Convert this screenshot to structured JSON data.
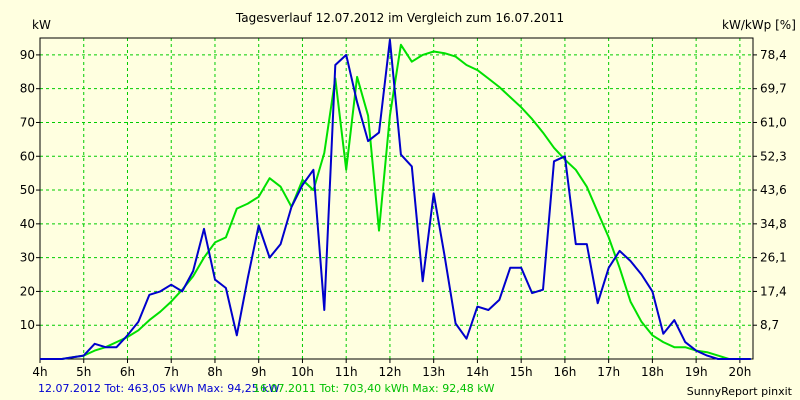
{
  "header": {
    "title": "Tagesverlauf 12.07.2012 im Vergleich zum 16.07.2011",
    "unit_left": "kW",
    "unit_right": "kW/kWp [%]"
  },
  "footer": {
    "series_a": "12.07.2012 Tot: 463,05 kWh Max: 94,25 kW",
    "series_b": "16.07.2011 Tot: 703,40 kWh Max: 92,48 kW",
    "brand": "SunnyReport pinxit"
  },
  "colors": {
    "background": "#ffffe0",
    "grid": "#00cc00",
    "series_a": "#0000cc",
    "series_b": "#00e000"
  },
  "chart_data": {
    "type": "line",
    "title": "Tagesverlauf 12.07.2012 im Vergleich zum 16.07.2011",
    "ylabel": "kW",
    "y2label": "kW/kWp [%]",
    "xlim": [
      4,
      20.3
    ],
    "ylim": [
      0,
      95
    ],
    "x_ticks": [
      {
        "v": 4,
        "label": "4h"
      },
      {
        "v": 5,
        "label": "5h"
      },
      {
        "v": 6,
        "label": "6h"
      },
      {
        "v": 7,
        "label": "7h"
      },
      {
        "v": 8,
        "label": "8h"
      },
      {
        "v": 9,
        "label": "9h"
      },
      {
        "v": 10,
        "label": "10h"
      },
      {
        "v": 11,
        "label": "11h"
      },
      {
        "v": 12,
        "label": "12h"
      },
      {
        "v": 13,
        "label": "13h"
      },
      {
        "v": 14,
        "label": "14h"
      },
      {
        "v": 15,
        "label": "15h"
      },
      {
        "v": 16,
        "label": "16h"
      },
      {
        "v": 17,
        "label": "17h"
      },
      {
        "v": 18,
        "label": "18h"
      },
      {
        "v": 19,
        "label": "19h"
      },
      {
        "v": 20,
        "label": "20h"
      }
    ],
    "y_ticks": [
      {
        "v": 10,
        "label": "10"
      },
      {
        "v": 20,
        "label": "20"
      },
      {
        "v": 30,
        "label": "30"
      },
      {
        "v": 40,
        "label": "40"
      },
      {
        "v": 50,
        "label": "50"
      },
      {
        "v": 60,
        "label": "60"
      },
      {
        "v": 70,
        "label": "70"
      },
      {
        "v": 80,
        "label": "80"
      },
      {
        "v": 90,
        "label": "90"
      }
    ],
    "y2_ticks": [
      {
        "v": 10,
        "label": "8,7"
      },
      {
        "v": 20,
        "label": "17,4"
      },
      {
        "v": 30,
        "label": "26,1"
      },
      {
        "v": 40,
        "label": "34,8"
      },
      {
        "v": 50,
        "label": "43,6"
      },
      {
        "v": 60,
        "label": "52,3"
      },
      {
        "v": 70,
        "label": "61,0"
      },
      {
        "v": 80,
        "label": "69,7"
      },
      {
        "v": 90,
        "label": "78,4"
      }
    ],
    "grid": true,
    "series": [
      {
        "name": "12.07.2012",
        "color": "#0000cc",
        "x": [
          4.0,
          4.25,
          4.5,
          4.75,
          5.0,
          5.25,
          5.5,
          5.75,
          6.0,
          6.25,
          6.5,
          6.75,
          7.0,
          7.25,
          7.5,
          7.75,
          8.0,
          8.25,
          8.5,
          8.75,
          9.0,
          9.25,
          9.5,
          9.75,
          10.0,
          10.25,
          10.5,
          10.75,
          11.0,
          11.25,
          11.5,
          11.75,
          12.0,
          12.25,
          12.5,
          12.75,
          13.0,
          13.25,
          13.5,
          13.75,
          14.0,
          14.25,
          14.5,
          14.75,
          15.0,
          15.25,
          15.5,
          15.75,
          16.0,
          16.25,
          16.5,
          16.75,
          17.0,
          17.25,
          17.5,
          17.75,
          18.0,
          18.25,
          18.5,
          18.75,
          19.0,
          19.25,
          19.5,
          19.75,
          20.0,
          20.25
        ],
        "y": [
          0,
          0,
          0,
          0.5,
          1,
          4.5,
          3.5,
          3.5,
          7,
          11,
          19,
          20,
          22,
          20,
          26,
          38.5,
          23.5,
          21,
          7,
          24,
          39.5,
          30,
          34,
          45,
          51.5,
          56,
          14.5,
          87,
          90,
          76,
          64.5,
          67,
          94.5,
          60.5,
          57,
          23,
          49,
          30.5,
          10.5,
          6,
          15.5,
          14.5,
          17.5,
          27,
          27,
          19.5,
          20.5,
          58.5,
          60,
          34,
          34,
          16.5,
          27,
          32,
          29,
          25,
          20,
          7.5,
          11.5,
          5,
          2.5,
          1,
          0,
          0,
          0,
          0
        ]
      },
      {
        "name": "16.07.2011",
        "color": "#00e000",
        "x": [
          4.0,
          4.25,
          4.5,
          4.75,
          5.0,
          5.25,
          5.5,
          5.75,
          6.0,
          6.25,
          6.5,
          6.75,
          7.0,
          7.25,
          7.5,
          7.75,
          8.0,
          8.25,
          8.5,
          8.75,
          9.0,
          9.25,
          9.5,
          9.75,
          10.0,
          10.25,
          10.5,
          10.75,
          11.0,
          11.25,
          11.5,
          11.75,
          12.0,
          12.25,
          12.5,
          12.75,
          13.0,
          13.25,
          13.5,
          13.75,
          14.0,
          14.25,
          14.5,
          14.75,
          15.0,
          15.25,
          15.5,
          15.75,
          16.0,
          16.25,
          16.5,
          16.75,
          17.0,
          17.25,
          17.5,
          17.75,
          18.0,
          18.25,
          18.5,
          18.75,
          19.0,
          19.25,
          19.5,
          19.75,
          20.0,
          20.25
        ],
        "y": [
          0,
          0,
          0,
          0.5,
          1,
          2.5,
          3.5,
          5,
          6.5,
          8.5,
          11.5,
          14,
          17,
          20.5,
          24.5,
          30,
          34.5,
          36,
          44.5,
          46,
          48,
          53.5,
          51,
          45,
          53,
          50,
          61,
          83,
          56,
          83.5,
          72,
          38,
          72,
          93,
          88,
          90,
          91,
          90.5,
          89.5,
          87,
          85.5,
          83,
          80.5,
          77.5,
          74.5,
          71,
          67,
          62.5,
          59,
          56,
          51,
          43.5,
          36,
          27,
          17,
          11,
          7,
          5,
          3.5,
          3.5,
          2.5,
          2,
          1,
          0,
          0,
          0
        ]
      }
    ]
  }
}
